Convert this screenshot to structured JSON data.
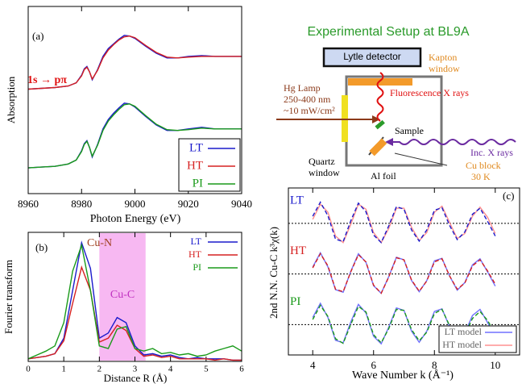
{
  "chart_data": [
    {
      "type": "line",
      "label": "(a)",
      "annotation": "1s → pπ",
      "xlabel": "Photon Energy  (eV)",
      "ylabel": "Absorption",
      "x": [
        8960,
        8965,
        8970,
        8975,
        8978,
        8980,
        8981,
        8982,
        8983,
        8984,
        8986,
        8988,
        8990,
        8992,
        8994,
        8996,
        8998,
        9000,
        9004,
        9008,
        9012,
        9016,
        9020,
        9025,
        9030,
        9035,
        9040
      ],
      "xlim": [
        8960,
        9040
      ],
      "xticks": [
        8960,
        8980,
        9000,
        9020,
        9040
      ],
      "ylim": [
        0,
        2.4
      ],
      "series": [
        {
          "name": "LT",
          "color": "#1a1acc",
          "values": [
            [
              1.34,
              1.35,
              1.36,
              1.38,
              1.42,
              1.52,
              1.6,
              1.63,
              1.56,
              1.46,
              1.59,
              1.76,
              1.86,
              1.92,
              1.98,
              2.03,
              2.02,
              1.99,
              1.89,
              1.8,
              1.74,
              1.74,
              1.76,
              1.77,
              1.76,
              1.76,
              1.76
            ],
            [
              0.33,
              0.34,
              0.35,
              0.38,
              0.43,
              0.55,
              0.64,
              0.68,
              0.59,
              0.47,
              0.63,
              0.83,
              0.95,
              1.03,
              1.1,
              1.16,
              1.15,
              1.11,
              0.99,
              0.88,
              0.81,
              0.81,
              0.83,
              0.85,
              0.83,
              0.83,
              0.83
            ]
          ]
        },
        {
          "name": "HT",
          "color": "#d62020",
          "values": [
            [
              1.34,
              1.35,
              1.36,
              1.38,
              1.42,
              1.51,
              1.59,
              1.62,
              1.56,
              1.47,
              1.58,
              1.74,
              1.84,
              1.91,
              1.97,
              2.01,
              2.02,
              2.0,
              1.9,
              1.81,
              1.75,
              1.74,
              1.75,
              1.76,
              1.76,
              1.76,
              1.76
            ]
          ]
        },
        {
          "name": "PI",
          "color": "#1a9a1a",
          "values": [
            [
              0.33,
              0.34,
              0.35,
              0.38,
              0.43,
              0.54,
              0.63,
              0.67,
              0.59,
              0.48,
              0.62,
              0.81,
              0.93,
              1.01,
              1.08,
              1.14,
              1.15,
              1.12,
              1.0,
              0.89,
              0.82,
              0.81,
              0.82,
              0.84,
              0.83,
              0.83,
              0.83
            ]
          ]
        }
      ]
    },
    {
      "type": "line",
      "label": "(b)",
      "annotation": "Cu-N",
      "xlabel": "Distance  R (Å)",
      "ylabel": "Fourier transform",
      "x": [
        0,
        0.25,
        0.5,
        0.75,
        1,
        1.25,
        1.5,
        1.75,
        2,
        2.25,
        2.5,
        2.75,
        3,
        3.25,
        3.5,
        3.75,
        4,
        4.25,
        4.5,
        4.75,
        5,
        5.25,
        5.5,
        5.75,
        6
      ],
      "xlim": [
        0,
        6
      ],
      "xticks": [
        0,
        1,
        2,
        3,
        4,
        5,
        6
      ],
      "ylim": [
        0,
        1
      ],
      "highlight": {
        "xlim": [
          2.0,
          3.3
        ],
        "label": "Cu-C",
        "color": "#f7b8f2"
      },
      "series": [
        {
          "name": "LT",
          "color": "#1a1acc",
          "values": [
            0.02,
            0.03,
            0.04,
            0.06,
            0.18,
            0.55,
            0.92,
            0.72,
            0.18,
            0.22,
            0.34,
            0.3,
            0.12,
            0.05,
            0.06,
            0.04,
            0.05,
            0.03,
            0.02,
            0.03,
            0.02,
            0.02,
            0.02,
            0.01,
            0.01
          ]
        },
        {
          "name": "HT",
          "color": "#d62020",
          "values": [
            0.02,
            0.03,
            0.04,
            0.06,
            0.16,
            0.45,
            0.73,
            0.55,
            0.15,
            0.18,
            0.28,
            0.24,
            0.1,
            0.04,
            0.05,
            0.03,
            0.04,
            0.02,
            0.02,
            0.02,
            0.02,
            0.01,
            0.02,
            0.01,
            0.01
          ]
        },
        {
          "name": "PI",
          "color": "#1a9a1a",
          "values": [
            0.02,
            0.05,
            0.08,
            0.12,
            0.3,
            0.7,
            0.9,
            0.55,
            0.12,
            0.1,
            0.25,
            0.27,
            0.1,
            0.08,
            0.1,
            0.06,
            0.07,
            0.05,
            0.06,
            0.04,
            0.05,
            0.08,
            0.1,
            0.12,
            0.08
          ]
        }
      ]
    },
    {
      "type": "line",
      "label": "(c)",
      "xlabel": "Wave Number  k  (Å⁻¹)",
      "ylabel": "2nd N.N. Cu-C k³χ(k)",
      "x": [
        4,
        4.25,
        4.5,
        4.75,
        5,
        5.25,
        5.5,
        5.75,
        6,
        6.25,
        6.5,
        6.75,
        7,
        7.25,
        7.5,
        7.75,
        8,
        8.25,
        8.5,
        8.75,
        9,
        9.25,
        9.5,
        9.75,
        10
      ],
      "xlim": [
        3.2,
        10.8
      ],
      "xticks": [
        4,
        6,
        8,
        10
      ],
      "ylim": [
        -0.1,
        3.2
      ],
      "series": [
        {
          "name": "LT",
          "color": "#1a1acc",
          "dashed": true,
          "reference": 2.5,
          "values": [
            2.64,
            2.92,
            2.65,
            2.19,
            2.14,
            2.55,
            2.9,
            2.73,
            2.27,
            2.12,
            2.45,
            2.83,
            2.78,
            2.37,
            2.15,
            2.37,
            2.76,
            2.81,
            2.46,
            2.18,
            2.33,
            2.68,
            2.8,
            2.54,
            2.25
          ]
        },
        {
          "name": "HT",
          "color": "#d62020",
          "dashed": true,
          "reference": 1.5,
          "values": [
            1.62,
            1.9,
            1.66,
            1.2,
            1.15,
            1.54,
            1.88,
            1.74,
            1.28,
            1.12,
            1.44,
            1.82,
            1.78,
            1.38,
            1.16,
            1.36,
            1.74,
            1.8,
            1.46,
            1.2,
            1.32,
            1.66,
            1.78,
            1.56,
            1.3
          ]
        },
        {
          "name": "PI",
          "color": "#1a9a1a",
          "dashed": true,
          "reference": 0.5,
          "values": [
            0.6,
            0.88,
            0.66,
            0.22,
            0.13,
            0.5,
            0.86,
            0.75,
            0.3,
            0.14,
            0.42,
            0.8,
            0.78,
            0.4,
            0.18,
            0.35,
            0.72,
            0.8,
            0.48,
            0.22,
            0.3,
            0.62,
            0.76,
            0.58,
            0.32
          ]
        }
      ],
      "models": [
        {
          "name": "LT model",
          "color": "#7070ff",
          "values": [
            [
              1.64,
              1.92,
              1.64,
              1.19,
              1.14,
              1.55,
              1.9,
              1.73,
              1.27,
              1.12,
              1.45,
              1.83,
              1.78,
              1.37,
              1.15,
              1.37,
              1.76,
              1.81,
              1.46,
              1.18,
              1.33,
              1.68,
              1.8,
              1.54,
              1.26
            ],
            [
              0.64,
              0.92,
              0.64,
              0.19,
              0.14,
              0.55,
              0.9,
              0.73,
              0.27,
              0.12,
              0.45,
              0.83,
              0.78,
              0.37,
              0.15,
              0.37,
              0.76,
              0.81,
              0.46,
              0.18,
              0.33,
              0.68,
              0.8,
              0.54,
              0.26
            ]
          ]
        },
        {
          "name": "HT model",
          "color": "#ff9090",
          "values": [
            [
              2.58,
              2.88,
              2.72,
              2.25,
              2.12,
              2.48,
              2.88,
              2.78,
              2.32,
              2.12,
              2.4,
              2.8,
              2.8,
              2.42,
              2.16,
              2.32,
              2.72,
              2.84,
              2.52,
              2.2,
              2.3,
              2.64,
              2.82,
              2.62,
              2.3
            ]
          ]
        }
      ]
    }
  ],
  "diagram": {
    "title": "Experimental Setup at BL9A",
    "detector": "Lytle detector",
    "kapton_window": [
      "Kapton",
      "window"
    ],
    "lamp": [
      "Hg Lamp",
      "250-400 nm",
      "~10 mW/cm²"
    ],
    "fluorescence": "Fluorescence X rays",
    "sample": "Sample",
    "incident": "Inc. X rays",
    "quartz_window": [
      "Quartz",
      "window"
    ],
    "al_foil": "Al foil",
    "cu_block": [
      "Cu block",
      "30 K"
    ]
  }
}
